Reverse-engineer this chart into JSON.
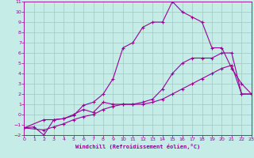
{
  "xlabel": "Windchill (Refroidissement éolien,°C)",
  "xlim": [
    0,
    23
  ],
  "ylim": [
    -2,
    11
  ],
  "xticks": [
    0,
    1,
    2,
    3,
    4,
    5,
    6,
    7,
    8,
    9,
    10,
    11,
    12,
    13,
    14,
    15,
    16,
    17,
    18,
    19,
    20,
    21,
    22,
    23
  ],
  "yticks": [
    -2,
    -1,
    0,
    1,
    2,
    3,
    4,
    5,
    6,
    7,
    8,
    9,
    10,
    11
  ],
  "bg_color": "#c5ece6",
  "grid_color": "#a0c8c0",
  "line_color": "#990099",
  "curve1_x": [
    0,
    1,
    2,
    3,
    4,
    5,
    6,
    7,
    8,
    9,
    10,
    11,
    12,
    13,
    14,
    15,
    16,
    17,
    18,
    19,
    20,
    21,
    22,
    23
  ],
  "curve1_y": [
    -1.3,
    -1.2,
    -2.0,
    -0.5,
    -0.4,
    -0.1,
    0.9,
    1.2,
    2.0,
    3.5,
    6.5,
    7.0,
    8.5,
    9.0,
    9.0,
    11.0,
    10.0,
    9.5,
    9.0,
    6.5,
    6.5,
    4.5,
    3.0,
    2.0
  ],
  "curve2_x": [
    0,
    2,
    3,
    4,
    5,
    6,
    7,
    8,
    9,
    10,
    11,
    12,
    13,
    14,
    15,
    16,
    17,
    18,
    19,
    20,
    21,
    22,
    23
  ],
  "curve2_y": [
    -1.3,
    -0.5,
    -0.5,
    -0.4,
    0.0,
    0.5,
    0.2,
    1.2,
    1.0,
    1.0,
    1.0,
    1.2,
    1.5,
    2.5,
    4.0,
    5.0,
    5.5,
    5.5,
    5.5,
    6.0,
    6.0,
    2.0,
    2.0
  ],
  "curve3_x": [
    0,
    2,
    3,
    4,
    5,
    6,
    7,
    8,
    9,
    10,
    11,
    12,
    13,
    14,
    15,
    16,
    17,
    18,
    19,
    20,
    21,
    22,
    23
  ],
  "curve3_y": [
    -1.3,
    -1.5,
    -1.2,
    -0.9,
    -0.5,
    -0.2,
    0.0,
    0.5,
    0.8,
    1.0,
    1.0,
    1.0,
    1.2,
    1.5,
    2.0,
    2.5,
    3.0,
    3.5,
    4.0,
    4.5,
    4.8,
    2.0,
    2.0
  ]
}
